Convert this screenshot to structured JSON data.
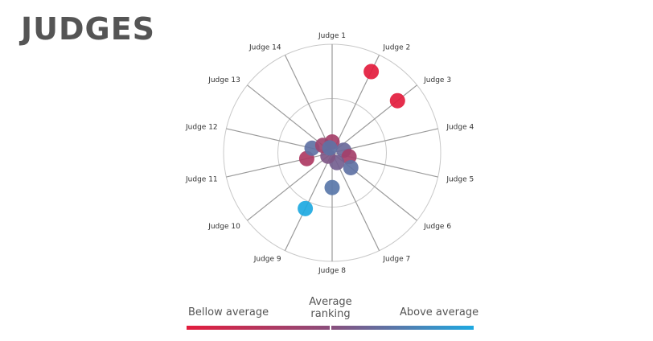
{
  "title": "JUDGES",
  "colors": {
    "below": "#e31c3d",
    "mid": "#8a4e7c",
    "above": "#1ea9e1",
    "axis": "#9a9a9a",
    "ring": "#c8c8c8"
  },
  "legend": {
    "low_label": "Bellow average",
    "mid_label_line1": "Average",
    "mid_label_line2": "ranking",
    "high_label": "Above average"
  },
  "chart_data": {
    "type": "scatter",
    "subtype": "radial",
    "title": "JUDGES",
    "categories": [
      "Judge 1",
      "Judge 2",
      "Judge 3",
      "Judge 4",
      "Judge 5",
      "Judge 6",
      "Judge 7",
      "Judge 8",
      "Judge 9",
      "Judge 10",
      "Judge 11",
      "Judge 12",
      "Judge 13",
      "Judge 14"
    ],
    "radius_range": [
      0,
      1
    ],
    "rings": [
      0.5,
      1.0
    ],
    "points": [
      {
        "judge": "Judge 1",
        "radius": 0.1,
        "score": -0.3
      },
      {
        "judge": "Judge 2",
        "radius": 0.83,
        "score": -1.0
      },
      {
        "judge": "Judge 3",
        "radius": 0.77,
        "score": -1.0
      },
      {
        "judge": "Judge 4",
        "radius": 0.11,
        "score": 0.3
      },
      {
        "judge": "Judge 5",
        "radius": 0.16,
        "score": -0.3
      },
      {
        "judge": "Judge 6",
        "radius": 0.22,
        "score": 0.4
      },
      {
        "judge": "Judge 7",
        "radius": 0.1,
        "score": 0.2
      },
      {
        "judge": "Judge 8",
        "radius": 0.32,
        "score": 0.45
      },
      {
        "judge": "Judge 9",
        "radius": 0.57,
        "score": 1.0
      },
      {
        "judge": "Judge 10",
        "radius": 0.05,
        "score": 0.1
      },
      {
        "judge": "Judge 11",
        "radius": 0.24,
        "score": -0.4
      },
      {
        "judge": "Judge 12",
        "radius": 0.19,
        "score": 0.4
      },
      {
        "judge": "Judge 13",
        "radius": 0.11,
        "score": -0.2
      },
      {
        "judge": "Judge 14",
        "radius": 0.05,
        "score": 0.4
      }
    ],
    "legend": {
      "position": "bottom",
      "gradient": [
        "Bellow average",
        "Average ranking",
        "Above average"
      ]
    }
  }
}
